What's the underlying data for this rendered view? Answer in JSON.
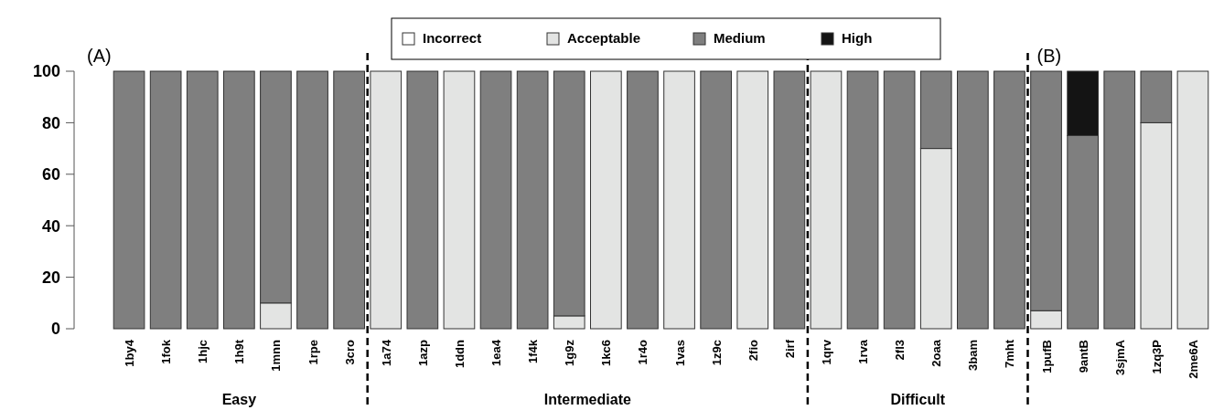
{
  "chart_data": {
    "type": "bar",
    "stacked": true,
    "categories": [
      "1by4",
      "1fok",
      "1hjc",
      "1h9t",
      "1mnn",
      "1rpe",
      "3cro",
      "1a74",
      "1azp",
      "1ddn",
      "1ea4",
      "1f4k",
      "1g9z",
      "1kc6",
      "1r4o",
      "1vas",
      "1z9c",
      "2fio",
      "2irf",
      "1qrv",
      "1rva",
      "2fl3",
      "2oaa",
      "3bam",
      "7mht",
      "1pufB",
      "9antB",
      "3sjmA",
      "1zq3P",
      "2me6A"
    ],
    "series": [
      {
        "name": "Incorrect",
        "color": "#ffffff",
        "values": [
          0,
          0,
          0,
          0,
          0,
          0,
          0,
          0,
          0,
          0,
          0,
          0,
          0,
          0,
          0,
          0,
          0,
          0,
          0,
          0,
          0,
          0,
          0,
          0,
          0,
          0,
          0,
          0,
          0,
          0
        ]
      },
      {
        "name": "Acceptable",
        "color": "#e3e4e3",
        "values": [
          0,
          0,
          0,
          0,
          10,
          0,
          0,
          100,
          0,
          100,
          0,
          0,
          5,
          100,
          0,
          100,
          0,
          100,
          0,
          100,
          0,
          0,
          70,
          0,
          0,
          7,
          0,
          0,
          80,
          100
        ]
      },
      {
        "name": "Medium",
        "color": "#7f7f7f",
        "values": [
          100,
          100,
          100,
          100,
          90,
          100,
          100,
          0,
          100,
          0,
          100,
          100,
          95,
          0,
          100,
          0,
          100,
          0,
          100,
          0,
          100,
          100,
          30,
          100,
          100,
          93,
          75,
          100,
          20,
          0
        ]
      },
      {
        "name": "High",
        "color": "#141414",
        "values": [
          0,
          0,
          0,
          0,
          0,
          0,
          0,
          0,
          0,
          0,
          0,
          0,
          0,
          0,
          0,
          0,
          0,
          0,
          0,
          0,
          0,
          0,
          0,
          0,
          0,
          0,
          25,
          0,
          0,
          0
        ]
      }
    ],
    "ylim": [
      0,
      100
    ],
    "yticks": [
      0,
      20,
      40,
      60,
      80,
      100
    ],
    "legend": "top",
    "annotations": [
      "(A)",
      "(B)",
      "Easy",
      "Intermediate",
      "Difficult"
    ]
  }
}
